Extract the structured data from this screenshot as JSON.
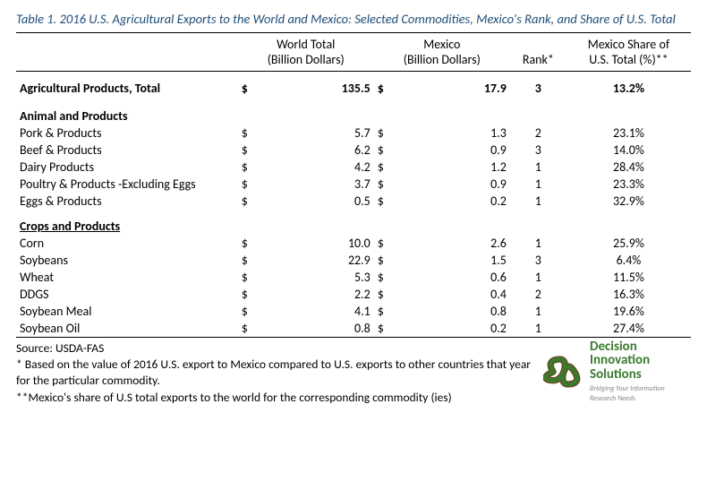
{
  "title": "Table 1. 2016 U.S. Agricultural Exports to the World and Mexico: Selected Commodities, Mexico's Rank, and Share of U.S. Total",
  "columns": {
    "world_l1": "World Total",
    "world_l2": "(Billion Dollars)",
    "mexico_l1": "Mexico",
    "mexico_l2": "(Billion Dollars)",
    "rank": "Rank*",
    "share_l1": "Mexico Share of",
    "share_l2": "U.S. Total (%)**"
  },
  "currency_symbol": "$",
  "total": {
    "name": "Agricultural Products, Total",
    "world": "135.5",
    "mexico": "17.9",
    "rank": "3",
    "share": "13.2%"
  },
  "section_animal": "Animal and Products",
  "animal": [
    {
      "name": "Pork & Products",
      "world": "5.7",
      "mexico": "1.3",
      "rank": "2",
      "share": "23.1%"
    },
    {
      "name": "Beef & Products",
      "world": "6.2",
      "mexico": "0.9",
      "rank": "3",
      "share": "14.0%"
    },
    {
      "name": "Dairy Products",
      "world": "4.2",
      "mexico": "1.2",
      "rank": "1",
      "share": "28.4%"
    },
    {
      "name": "Poultry & Products -Excluding Eggs",
      "world": "3.7",
      "mexico": "0.9",
      "rank": "1",
      "share": "23.3%"
    },
    {
      "name": "Eggs & Products",
      "world": "0.5",
      "mexico": "0.2",
      "rank": "1",
      "share": "32.9%"
    }
  ],
  "section_crops": "Crops and Products",
  "crops": [
    {
      "name": "Corn",
      "world": "10.0",
      "mexico": "2.6",
      "rank": "1",
      "share": "25.9%"
    },
    {
      "name": "Soybeans",
      "world": "22.9",
      "mexico": "1.5",
      "rank": "3",
      "share": "6.4%"
    },
    {
      "name": "Wheat",
      "world": "5.3",
      "mexico": "0.6",
      "rank": "1",
      "share": "11.5%"
    },
    {
      "name": "DDGS",
      "world": "2.2",
      "mexico": "0.4",
      "rank": "2",
      "share": "16.3%"
    },
    {
      "name": "Soybean Meal",
      "world": "4.1",
      "mexico": "0.8",
      "rank": "1",
      "share": "19.6%"
    },
    {
      "name": "Soybean Oil",
      "world": "0.8",
      "mexico": "0.2",
      "rank": "1",
      "share": "27.4%"
    }
  ],
  "footnotes": {
    "source": "Source: USDA-FAS",
    "f1": "* Based on the value of 2016 U.S. export to Mexico compared to U.S. exports to other countries that year for the particular commodity.",
    "f2": "**Mexico's share of U.S total exports to the world for the corresponding commodity (ies)"
  },
  "logo": {
    "l1": "Decision",
    "l2": "Innovation",
    "l3": "Solutions",
    "tag": "Bridging Your Information Research Needs",
    "knot_color": "#3a7a2f",
    "outline_color": "#6b4a1f"
  }
}
